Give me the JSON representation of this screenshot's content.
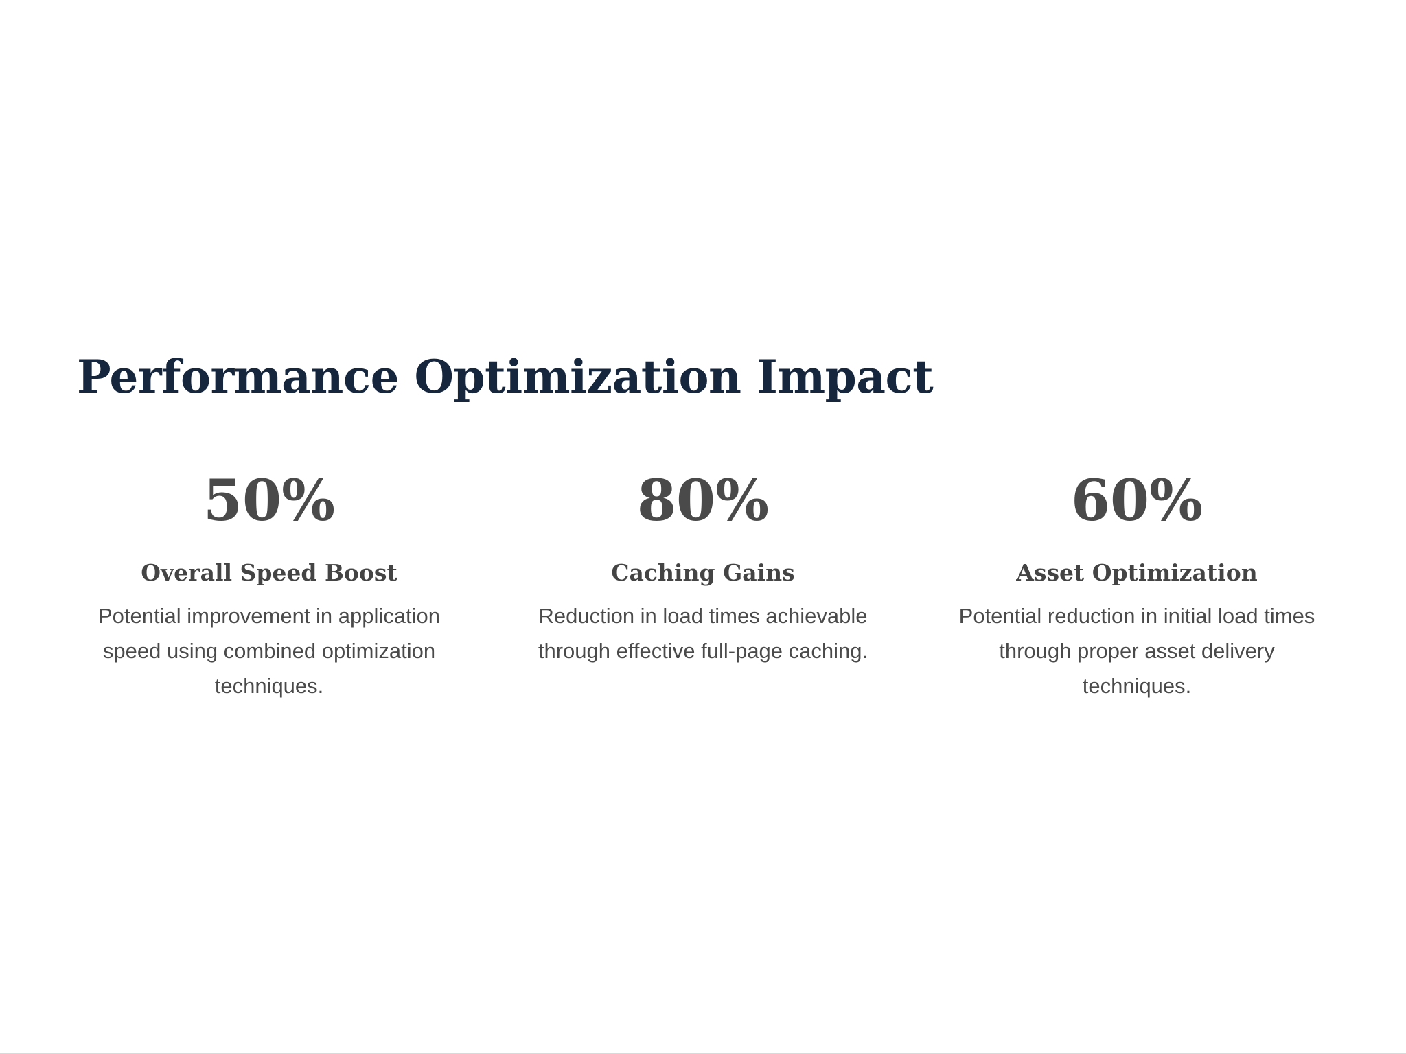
{
  "section": {
    "title": "Performance Optimization Impact"
  },
  "stats": [
    {
      "value": "50%",
      "label": "Overall Speed Boost",
      "description": "Potential improvement in application speed using combined optimization techniques."
    },
    {
      "value": "80%",
      "label": "Caching Gains",
      "description": "Reduction in load times achievable through effective full-page caching."
    },
    {
      "value": "60%",
      "label": "Asset Optimization",
      "description": "Potential reduction in initial load times through proper asset delivery techniques."
    }
  ],
  "colors": {
    "title": "#16263d",
    "stat_value": "#4a4a4a",
    "stat_label": "#444444",
    "stat_description": "#4a4a4a"
  }
}
